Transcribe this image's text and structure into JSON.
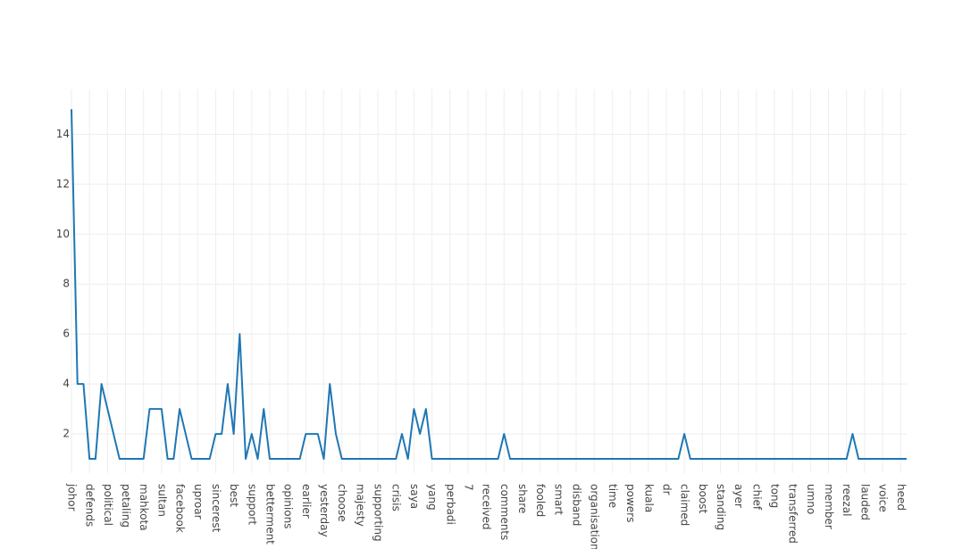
{
  "chart_data": {
    "type": "line",
    "categories": [
      "johor",
      null,
      null,
      "defends",
      null,
      null,
      "political",
      null,
      null,
      "petaling",
      null,
      null,
      "mahkota",
      null,
      null,
      "sultan",
      null,
      null,
      "facebook",
      null,
      null,
      "uproar",
      null,
      null,
      "sincerest",
      null,
      null,
      "best",
      null,
      null,
      "support",
      null,
      null,
      "betterment",
      null,
      null,
      "opinions",
      null,
      null,
      "earlier",
      null,
      null,
      "yesterday",
      null,
      null,
      "choose",
      null,
      null,
      "majesty",
      null,
      null,
      "supporting",
      null,
      null,
      "crisis",
      null,
      null,
      "saya",
      null,
      null,
      "yang",
      null,
      null,
      "perbadi",
      null,
      null,
      "7",
      null,
      null,
      "received",
      null,
      null,
      "comments",
      null,
      null,
      "share",
      null,
      null,
      "fooled",
      null,
      null,
      "smart",
      null,
      null,
      "disband",
      null,
      null,
      "organisation",
      null,
      null,
      "time",
      null,
      null,
      "powers",
      null,
      null,
      "kuala",
      null,
      null,
      "dr",
      null,
      null,
      "claimed",
      null,
      null,
      "boost",
      null,
      null,
      "standing",
      null,
      null,
      "ayer",
      null,
      null,
      "chief",
      null,
      null,
      "tong",
      null,
      null,
      "transferred",
      null,
      null,
      "umno",
      null,
      null,
      "member",
      null,
      null,
      "reezal",
      null,
      null,
      "lauded",
      null,
      null,
      "voice",
      null,
      null,
      "heed",
      null
    ],
    "series": [
      {
        "color": "#1f77b4",
        "values": [
          15,
          4,
          4,
          1,
          1,
          4,
          3,
          2,
          1,
          1,
          1,
          1,
          1,
          3,
          3,
          3,
          1,
          1,
          3,
          2,
          1,
          1,
          1,
          1,
          2,
          2,
          4,
          2,
          6,
          1,
          2,
          1,
          3,
          1,
          1,
          1,
          1,
          1,
          1,
          2,
          2,
          2,
          1,
          4,
          2,
          1,
          1,
          1,
          1,
          1,
          1,
          1,
          1,
          1,
          1,
          2,
          1,
          3,
          2,
          3,
          1,
          1,
          1,
          1,
          1,
          1,
          1,
          1,
          1,
          1,
          1,
          1,
          2,
          1,
          1,
          1,
          1,
          1,
          1,
          1,
          1,
          1,
          1,
          1,
          1,
          1,
          1,
          1,
          1,
          1,
          1,
          1,
          1,
          1,
          1,
          1,
          1,
          1,
          1,
          1,
          1,
          1,
          2,
          1,
          1,
          1,
          1,
          1,
          1,
          1,
          1,
          1,
          1,
          1,
          1,
          1,
          1,
          1,
          1,
          1,
          1,
          1,
          1,
          1,
          1,
          1,
          1,
          1,
          1,
          1,
          2,
          1,
          1,
          1,
          1,
          1,
          1,
          1,
          1,
          1
        ]
      }
    ],
    "ylim": [
      0.43,
      15.8
    ],
    "yticks": [
      2,
      4,
      6,
      8,
      10,
      12,
      14
    ],
    "grid": true
  }
}
